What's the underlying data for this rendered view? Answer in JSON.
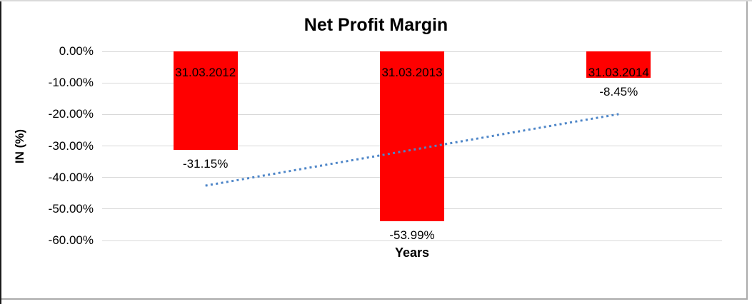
{
  "chart_data": {
    "type": "bar",
    "title": "Net Profit Margin",
    "xlabel": "Years",
    "ylabel": "IN (%)",
    "categories": [
      "31.03.2012",
      "31.03.2013",
      "31.03.2014"
    ],
    "values": [
      -31.15,
      -53.99,
      -8.45
    ],
    "data_labels": [
      "-31.15%",
      "-53.99%",
      "-8.45%"
    ],
    "ylim": [
      -60,
      0
    ],
    "yticks": [
      {
        "value": 0,
        "label": "0.00%"
      },
      {
        "value": -10,
        "label": "-10.00%"
      },
      {
        "value": -20,
        "label": "-20.00%"
      },
      {
        "value": -30,
        "label": "-30.00%"
      },
      {
        "value": -40,
        "label": "-40.00%"
      },
      {
        "value": -50,
        "label": "-50.00%"
      },
      {
        "value": -60,
        "label": "-60.00%"
      }
    ],
    "grid": "horizontal",
    "legend": "none",
    "colors": {
      "bar": "#FF0000",
      "trendline": "#4E86C8",
      "gridline": "#D9D9D9",
      "text": "#000000",
      "background": "#FFFFFF"
    },
    "trendline": {
      "type": "linear",
      "style": "dotted",
      "start_pct": -42.6,
      "end_pct": -19.9
    }
  }
}
